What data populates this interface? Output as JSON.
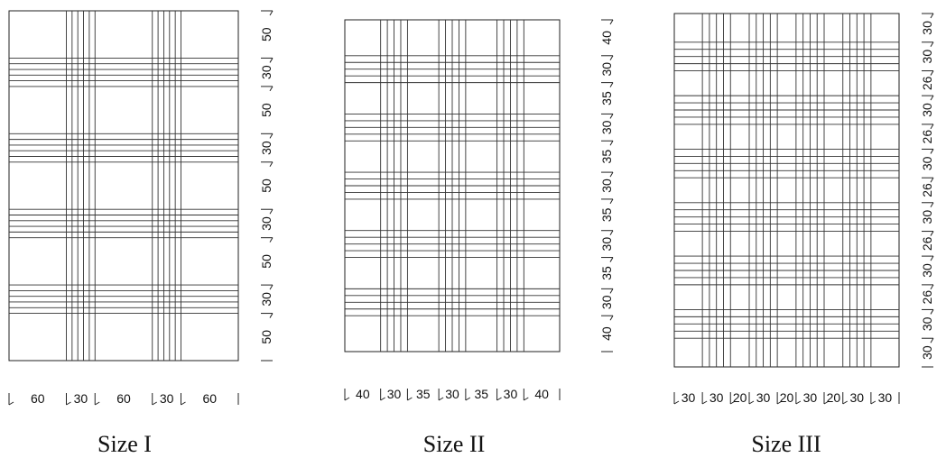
{
  "diagrams": [
    {
      "caption": "Size I",
      "columns": [
        60,
        30,
        60,
        30,
        60
      ],
      "rows": [
        50,
        30,
        50,
        30,
        50,
        30,
        50,
        30,
        50
      ],
      "column_labels": [
        "60",
        "30",
        "60",
        "30",
        "60"
      ],
      "row_labels": [
        "50",
        "30",
        "50",
        "30",
        "50",
        "30",
        "50",
        "30",
        "50"
      ]
    },
    {
      "caption": "Size II",
      "columns": [
        40,
        30,
        35,
        30,
        35,
        30,
        40
      ],
      "rows": [
        40,
        30,
        35,
        30,
        35,
        30,
        35,
        30,
        35,
        30,
        40
      ],
      "column_labels": [
        "40",
        "30",
        "35",
        "30",
        "35",
        "30",
        "40"
      ],
      "row_labels": [
        "40",
        "30",
        "35",
        "30",
        "35",
        "30",
        "35",
        "30",
        "35",
        "30",
        "40"
      ]
    },
    {
      "caption": "Size III",
      "columns": [
        30,
        30,
        20,
        30,
        20,
        30,
        20,
        30,
        30
      ],
      "rows": [
        30,
        30,
        26,
        30,
        26,
        30,
        26,
        30,
        26,
        30,
        26,
        30,
        30
      ],
      "column_labels": [
        "30",
        "30",
        "20",
        "30",
        "20",
        "30",
        "20",
        "30",
        "30"
      ],
      "row_labels": [
        "30",
        "30",
        "26",
        "30",
        "26",
        "30",
        "26",
        "30",
        "26",
        "30",
        "26",
        "30",
        "30"
      ]
    }
  ]
}
